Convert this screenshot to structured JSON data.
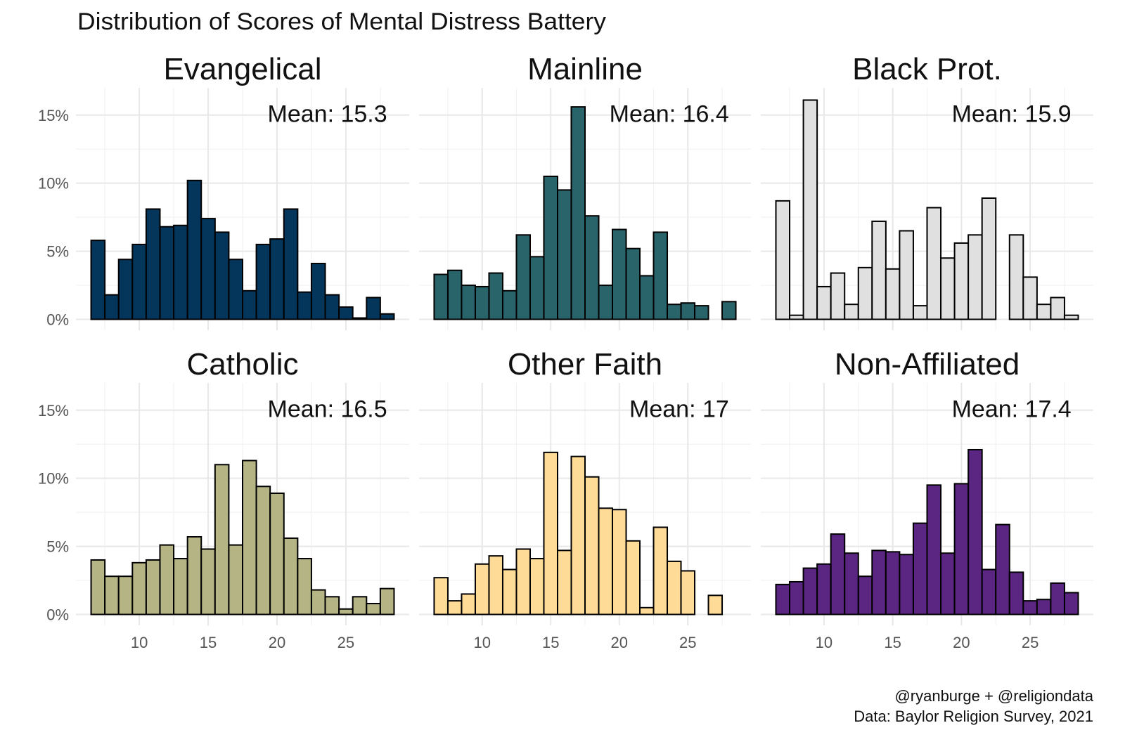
{
  "chart_data": {
    "type": "bar",
    "title": "Distribution of Scores of Mental Distress Battery",
    "xlabel": "",
    "ylabel": "",
    "x": [
      7,
      8,
      9,
      10,
      11,
      12,
      13,
      14,
      15,
      16,
      17,
      18,
      19,
      20,
      21,
      22,
      23,
      24,
      25,
      26,
      27,
      28
    ],
    "x_ticks": [
      "10",
      "15",
      "20",
      "25"
    ],
    "x_tick_values": [
      10,
      15,
      20,
      25
    ],
    "y_ticks": [
      "0%",
      "5%",
      "10%",
      "15%"
    ],
    "y_tick_values": [
      0,
      5,
      10,
      15
    ],
    "xlim": [
      5.4,
      29.6
    ],
    "ylim": [
      -0.8,
      17
    ],
    "grid": true,
    "panels": [
      {
        "name": "Evangelical",
        "mean_label": "Mean: 15.3",
        "color": "#04365c",
        "values": [
          5.8,
          1.8,
          4.4,
          5.5,
          8.1,
          6.8,
          6.9,
          10.2,
          7.4,
          6.4,
          4.4,
          2.1,
          5.5,
          5.9,
          8.1,
          2.0,
          4.1,
          1.8,
          0.9,
          0.1,
          1.6,
          0.4
        ]
      },
      {
        "name": "Mainline",
        "mean_label": "Mean: 16.4",
        "color": "#2a646b",
        "values": [
          3.3,
          3.6,
          2.5,
          2.4,
          3.4,
          2.1,
          6.2,
          4.6,
          10.5,
          9.5,
          15.6,
          7.6,
          2.5,
          6.6,
          5.2,
          3.2,
          6.4,
          1.1,
          1.2,
          1.0,
          0,
          1.3
        ]
      },
      {
        "name": "Black Prot.",
        "mean_label": "Mean: 15.9",
        "color": "#e0e0e0",
        "values": [
          8.7,
          0.3,
          16.1,
          2.4,
          3.4,
          1.1,
          3.8,
          7.2,
          3.7,
          6.5,
          1.0,
          8.2,
          4.5,
          5.6,
          6.2,
          8.9,
          0,
          6.2,
          3.1,
          1.1,
          1.6,
          0.3
        ]
      },
      {
        "name": "Catholic",
        "mean_label": "Mean: 16.5",
        "color": "#b4b484",
        "values": [
          4.0,
          2.8,
          2.8,
          3.8,
          4.0,
          5.1,
          4.1,
          5.7,
          4.8,
          11.0,
          5.1,
          11.3,
          9.4,
          8.9,
          5.6,
          4.1,
          1.8,
          1.3,
          0.4,
          1.3,
          0.8,
          1.9
        ]
      },
      {
        "name": "Other Faith",
        "mean_label": "Mean: 17",
        "color": "#ffdb98",
        "values": [
          2.7,
          1.0,
          1.5,
          3.7,
          4.3,
          3.3,
          4.8,
          4.1,
          11.9,
          4.7,
          11.6,
          10.1,
          7.8,
          7.7,
          5.4,
          0.5,
          6.4,
          3.9,
          3.2,
          0,
          1.4,
          0
        ]
      },
      {
        "name": "Non-Affiliated",
        "mean_label": "Mean: 17.4",
        "color": "#5b2682",
        "values": [
          2.2,
          2.4,
          3.4,
          3.7,
          5.9,
          4.5,
          2.8,
          4.7,
          4.6,
          4.4,
          6.7,
          9.5,
          4.5,
          9.6,
          12.1,
          3.3,
          6.6,
          3.1,
          1.0,
          1.1,
          2.3,
          1.6
        ]
      }
    ],
    "caption": [
      "@ryanburge + @religiondata",
      "Data: Baylor Religion Survey, 2021"
    ]
  }
}
